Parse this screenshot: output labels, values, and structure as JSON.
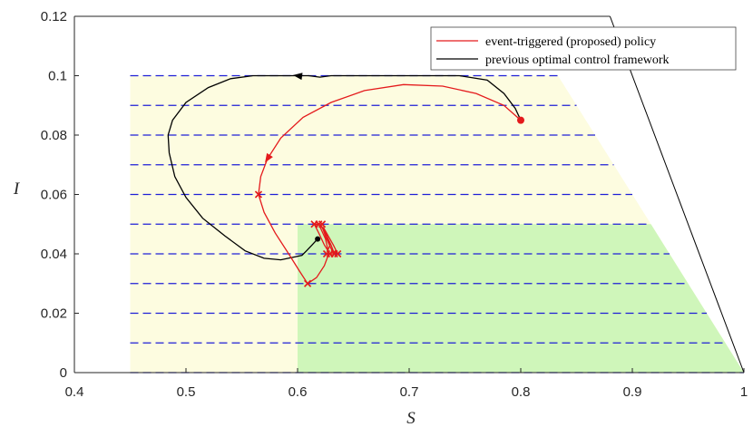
{
  "chart_data": {
    "type": "line",
    "xlabel": "S",
    "ylabel": "I",
    "xlim": [
      0.4,
      1
    ],
    "ylim": [
      0,
      0.12
    ],
    "grid": false,
    "legend_position": "top-right",
    "x_ticks": [
      "0.4",
      "0.5",
      "0.6",
      "0.7",
      "0.8",
      "0.9",
      "1"
    ],
    "y_ticks": [
      "0",
      "0.02",
      "0.04",
      "0.06",
      "0.08",
      "0.1",
      "0.12"
    ],
    "colors": {
      "event_triggered": "#e41a1c",
      "previous_framework": "#000000",
      "yellow_region": "#fdfce0",
      "green_region": "#cff6ba",
      "dashed_lines": "#1f1fd6"
    },
    "regions": [
      {
        "color": "yellow",
        "S": [
          0.45,
          0.9
        ],
        "I": [
          0,
          0.1
        ],
        "right_edge": "I = 0.6 * (1 - S)"
      },
      {
        "color": "green",
        "S": [
          0.6,
          0.98
        ],
        "I": [
          0,
          0.05
        ],
        "right_edge": "I = 0.6 * (1 - S)"
      }
    ],
    "boundary_line": [
      [
        0.88,
        0.12
      ],
      [
        1.0,
        0.0
      ]
    ],
    "dashed_levels": [
      0.01,
      0.02,
      0.03,
      0.04,
      0.05,
      0.06,
      0.07,
      0.08,
      0.09,
      0.1
    ],
    "series": [
      {
        "name": "event-triggered (proposed) policy",
        "color": "#e41a1c",
        "points": [
          [
            0.8,
            0.085
          ],
          [
            0.785,
            0.09
          ],
          [
            0.76,
            0.094
          ],
          [
            0.73,
            0.0965
          ],
          [
            0.695,
            0.097
          ],
          [
            0.66,
            0.095
          ],
          [
            0.63,
            0.091
          ],
          [
            0.605,
            0.086
          ],
          [
            0.585,
            0.079
          ],
          [
            0.573,
            0.072
          ],
          [
            0.567,
            0.066
          ],
          [
            0.565,
            0.06
          ],
          [
            0.57,
            0.054
          ],
          [
            0.58,
            0.047
          ],
          [
            0.592,
            0.04
          ],
          [
            0.602,
            0.034
          ],
          [
            0.609,
            0.03
          ],
          [
            0.617,
            0.032
          ],
          [
            0.624,
            0.036
          ],
          [
            0.628,
            0.04
          ],
          [
            0.625,
            0.045
          ],
          [
            0.619,
            0.05
          ],
          [
            0.615,
            0.05
          ],
          [
            0.619,
            0.047
          ],
          [
            0.624,
            0.043
          ],
          [
            0.629,
            0.04
          ],
          [
            0.633,
            0.04
          ],
          [
            0.63,
            0.043
          ],
          [
            0.625,
            0.047
          ],
          [
            0.62,
            0.05
          ],
          [
            0.622,
            0.049
          ],
          [
            0.626,
            0.045
          ],
          [
            0.631,
            0.041
          ],
          [
            0.636,
            0.04
          ],
          [
            0.632,
            0.043
          ],
          [
            0.626,
            0.047
          ],
          [
            0.623,
            0.049
          ],
          [
            0.625,
            0.046
          ],
          [
            0.629,
            0.043
          ],
          [
            0.627,
            0.041
          ]
        ],
        "markers": [
          [
            0.565,
            0.06
          ],
          [
            0.609,
            0.03
          ],
          [
            0.615,
            0.05
          ],
          [
            0.619,
            0.05
          ],
          [
            0.622,
            0.05
          ],
          [
            0.626,
            0.04
          ],
          [
            0.629,
            0.04
          ],
          [
            0.633,
            0.04
          ],
          [
            0.636,
            0.04
          ]
        ],
        "start": [
          0.8,
          0.085
        ],
        "arrows": [
          [
            0.573,
            0.072
          ]
        ]
      },
      {
        "name": "previous optimal control framework",
        "color": "#000000",
        "points": [
          [
            0.8,
            0.085
          ],
          [
            0.795,
            0.089
          ],
          [
            0.785,
            0.094
          ],
          [
            0.77,
            0.0985
          ],
          [
            0.745,
            0.1
          ],
          [
            0.71,
            0.1
          ],
          [
            0.68,
            0.1
          ],
          [
            0.65,
            0.1
          ],
          [
            0.63,
            0.1
          ],
          [
            0.62,
            0.0995
          ],
          [
            0.61,
            0.1
          ],
          [
            0.59,
            0.1
          ],
          [
            0.56,
            0.1
          ],
          [
            0.54,
            0.099
          ],
          [
            0.52,
            0.096
          ],
          [
            0.5,
            0.091
          ],
          [
            0.488,
            0.085
          ],
          [
            0.484,
            0.08
          ],
          [
            0.485,
            0.074
          ],
          [
            0.49,
            0.066
          ],
          [
            0.5,
            0.059
          ],
          [
            0.515,
            0.052
          ],
          [
            0.535,
            0.046
          ],
          [
            0.553,
            0.041
          ],
          [
            0.57,
            0.0385
          ],
          [
            0.585,
            0.038
          ],
          [
            0.598,
            0.039
          ],
          [
            0.604,
            0.0395
          ],
          [
            0.608,
            0.041
          ],
          [
            0.613,
            0.043
          ],
          [
            0.618,
            0.045
          ]
        ],
        "arrows": [
          [
            0.6,
            0.1
          ]
        ],
        "end": [
          0.618,
          0.045
        ]
      }
    ]
  }
}
